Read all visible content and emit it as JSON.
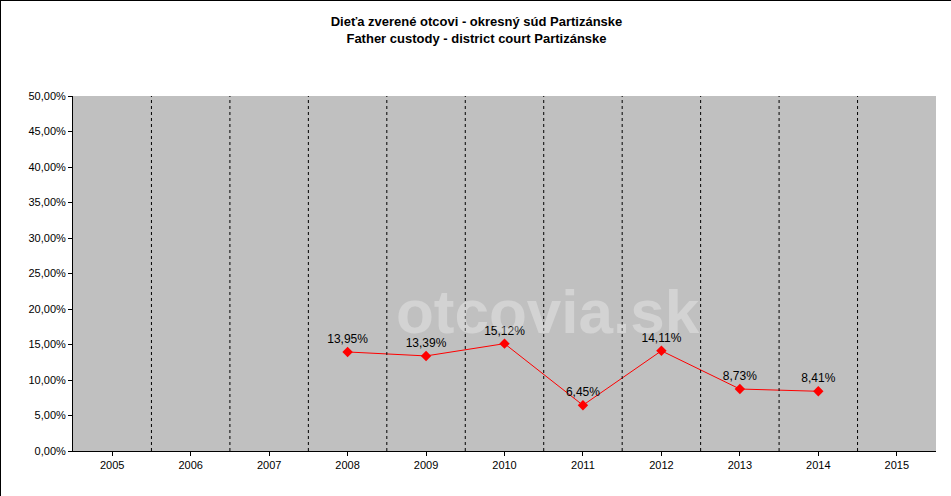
{
  "chart_data": {
    "type": "line",
    "title": "Dieťa zverené otcovi - okresný súd Partizánske",
    "subtitle": "Father custody - district court Partizánske",
    "categories": [
      "2005",
      "2006",
      "2007",
      "2008",
      "2009",
      "2010",
      "2011",
      "2012",
      "2013",
      "2014",
      "2015"
    ],
    "values": [
      null,
      null,
      null,
      13.95,
      13.39,
      15.12,
      6.45,
      14.11,
      8.73,
      8.41,
      null
    ],
    "value_labels": [
      null,
      null,
      null,
      "13,95%",
      "13,39%",
      "15,12%",
      "6,45%",
      "14,11%",
      "8,73%",
      "8,41%",
      null
    ],
    "color": "#ff0000",
    "marker": "diamond",
    "line_style": "solid",
    "data_labels": true,
    "grid": "x",
    "ylim": [
      0,
      50
    ],
    "yticks": [
      {
        "value": 0,
        "label": "0,00%"
      },
      {
        "value": 5,
        "label": "5,00%"
      },
      {
        "value": 10,
        "label": "10,00%"
      },
      {
        "value": 15,
        "label": "15,00%"
      },
      {
        "value": 20,
        "label": "20,00%"
      },
      {
        "value": 25,
        "label": "25,00%"
      },
      {
        "value": 30,
        "label": "30,00%"
      },
      {
        "value": 35,
        "label": "35,00%"
      },
      {
        "value": 40,
        "label": "40,00%"
      },
      {
        "value": 45,
        "label": "45,00%"
      },
      {
        "value": 50,
        "label": "50,00%"
      }
    ],
    "annotations": [
      "otcovia.sk"
    ]
  }
}
